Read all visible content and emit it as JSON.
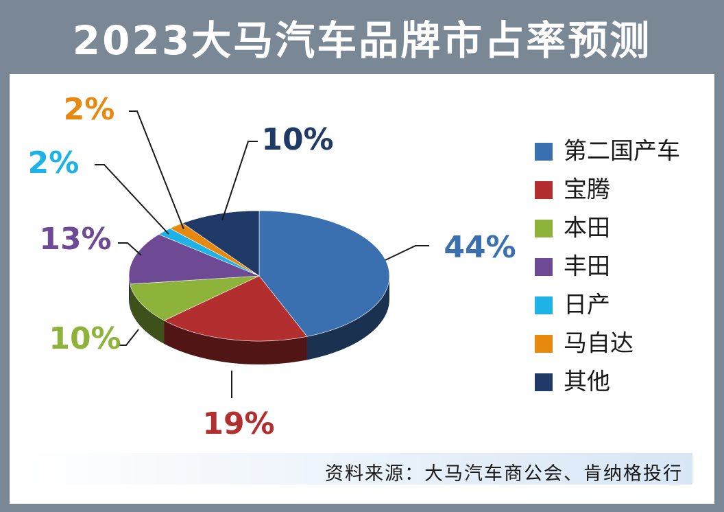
{
  "title": "2023大马汽车品牌市占率预测",
  "source": "资料来源：大马汽车商公会、肯纳格投行",
  "chart_data": {
    "type": "pie",
    "title": "2023大马汽车品牌市占率预测",
    "unit": "%",
    "legend_position": "right",
    "series": [
      {
        "name": "第二国产车",
        "value": 44,
        "label": "44%",
        "color": "#3a6fb0"
      },
      {
        "name": "宝腾",
        "value": 19,
        "label": "19%",
        "color": "#b32e2e"
      },
      {
        "name": "本田",
        "value": 10,
        "label": "10%",
        "color": "#8db33a"
      },
      {
        "name": "丰田",
        "value": 13,
        "label": "13%",
        "color": "#6d4a93"
      },
      {
        "name": "日产",
        "value": 2,
        "label": "2%",
        "color": "#1fb2e6"
      },
      {
        "name": "马自达",
        "value": 2,
        "label": "2%",
        "color": "#e8890f"
      },
      {
        "name": "其他",
        "value": 10,
        "label": "10%",
        "color": "#1f3a66"
      }
    ]
  }
}
